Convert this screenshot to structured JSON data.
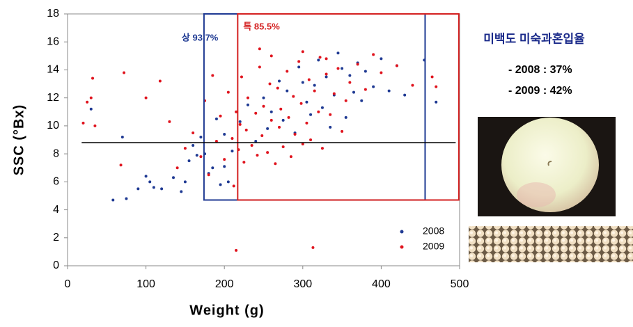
{
  "chart_data": {
    "type": "scatter",
    "x_label": "Weight (g)",
    "y_label": "SSC (°Bx)",
    "xlim": [
      0,
      500
    ],
    "ylim": [
      0,
      18
    ],
    "xticks": [
      0,
      100,
      200,
      300,
      400,
      500
    ],
    "yticks": [
      0,
      2,
      4,
      6,
      8,
      10,
      12,
      14,
      16,
      18
    ],
    "legend": "lower right",
    "hline": {
      "y": 8.8,
      "xlim": [
        18,
        495
      ],
      "color": "#000000"
    },
    "regions": [
      {
        "label": "상 93.7%",
        "color": "#1f3a93",
        "xlim": [
          174,
          456
        ],
        "ylim": [
          4.7,
          18
        ]
      },
      {
        "label": "특 85.5%",
        "color": "#d42020",
        "xlim": [
          217,
          499
        ],
        "ylim": [
          4.7,
          18
        ]
      }
    ],
    "series": [
      {
        "name": "2008",
        "color": "#1f3a93",
        "x": [
          58,
          75,
          90,
          100,
          105,
          110,
          120,
          135,
          145,
          150,
          155,
          160,
          165,
          170,
          175,
          180,
          185,
          190,
          195,
          200,
          205,
          210,
          220,
          230,
          240,
          250,
          255,
          260,
          270,
          275,
          280,
          290,
          295,
          300,
          305,
          310,
          315,
          320,
          325,
          330,
          335,
          340,
          345,
          350,
          355,
          360,
          365,
          370,
          375,
          380,
          390,
          400,
          410,
          420,
          430,
          455,
          470,
          30,
          70,
          200
        ],
        "values": [
          4.7,
          4.8,
          5.5,
          6.4,
          6,
          5.6,
          5.5,
          6.3,
          5.3,
          6,
          7.5,
          8.6,
          7.9,
          9.2,
          8,
          6.6,
          7,
          10.5,
          5.8,
          9.4,
          6,
          8.2,
          10.3,
          11.5,
          8.9,
          12,
          9.8,
          11,
          13.2,
          10.4,
          12.5,
          9.5,
          14.2,
          13.1,
          11.7,
          10.8,
          12.9,
          14.7,
          11.3,
          13.5,
          9.9,
          12.2,
          15.2,
          14.1,
          10.6,
          13.6,
          12.4,
          14.5,
          11.8,
          13.9,
          12.8,
          14.8,
          12.5,
          14.3,
          12.2,
          14.7,
          11.7,
          11.2,
          9.2,
          7.1
        ]
      },
      {
        "name": "2009",
        "color": "#e0141e",
        "x": [
          20,
          25,
          30,
          32,
          35,
          68,
          72,
          100,
          118,
          130,
          140,
          150,
          160,
          170,
          175,
          180,
          185,
          190,
          195,
          200,
          205,
          210,
          212,
          215,
          218,
          220,
          222,
          225,
          228,
          230,
          235,
          240,
          242,
          245,
          248,
          250,
          255,
          258,
          260,
          265,
          268,
          270,
          272,
          275,
          280,
          282,
          285,
          288,
          290,
          295,
          298,
          300,
          305,
          308,
          310,
          315,
          320,
          322,
          325,
          330,
          335,
          340,
          345,
          350,
          355,
          360,
          370,
          380,
          390,
          400,
          420,
          440,
          465,
          470,
          215,
          313,
          245,
          260,
          300,
          330
        ],
        "values": [
          10.2,
          11.7,
          12,
          13.4,
          10,
          7.2,
          13.8,
          12,
          13.2,
          10.3,
          7,
          8.4,
          9.5,
          7.8,
          11.8,
          6.5,
          13.6,
          8.9,
          10.7,
          7.6,
          12.4,
          9.1,
          5.7,
          11,
          8.3,
          10.1,
          13.5,
          7.4,
          9.7,
          12,
          8.6,
          10.9,
          7.9,
          15.5,
          9.3,
          11.4,
          8.1,
          13,
          10.4,
          7.3,
          12.7,
          9.9,
          11.2,
          8.5,
          13.9,
          10.6,
          7.8,
          12.1,
          9.4,
          14.6,
          11.6,
          8.7,
          10.2,
          13.3,
          9,
          12.5,
          11,
          14.9,
          8.4,
          13.7,
          10.8,
          12.3,
          14.1,
          9.6,
          11.8,
          13.1,
          14.4,
          12.6,
          15.1,
          13.8,
          14.3,
          12.9,
          13.5,
          12.8,
          1.1,
          1.3,
          14.2,
          15,
          15.3,
          14.8
        ]
      }
    ]
  },
  "side_panel": {
    "title": "미백도 미숙과혼입율",
    "lines": [
      "- 2008 : 37%",
      "- 2009 : 42%"
    ]
  }
}
